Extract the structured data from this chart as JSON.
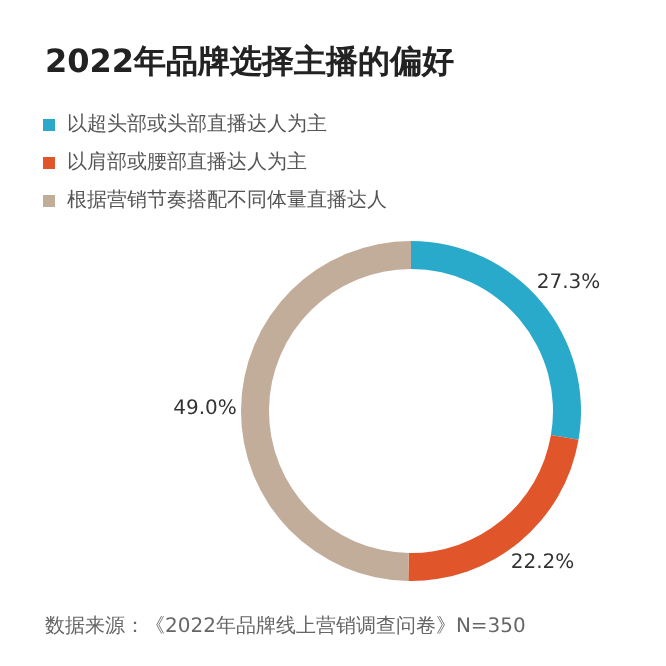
{
  "chart_data": {
    "type": "donut",
    "title": "2022年品牌选择主播的偏好",
    "categories": [
      "以超头部或头部直播达人为主",
      "以肩部或腰部直播达人为主",
      "根据营销节奏搭配不同体量直播达人"
    ],
    "values": [
      27.3,
      22.2,
      49.0
    ],
    "colors": [
      "#2aaacb",
      "#e0562a",
      "#c2ad9a"
    ],
    "value_labels": [
      "27.3%",
      "22.2%",
      "49.0%"
    ],
    "legend": "top left",
    "annotations": [
      "数据来源：《2022年品牌线上营销调查问卷》N=350"
    ]
  }
}
